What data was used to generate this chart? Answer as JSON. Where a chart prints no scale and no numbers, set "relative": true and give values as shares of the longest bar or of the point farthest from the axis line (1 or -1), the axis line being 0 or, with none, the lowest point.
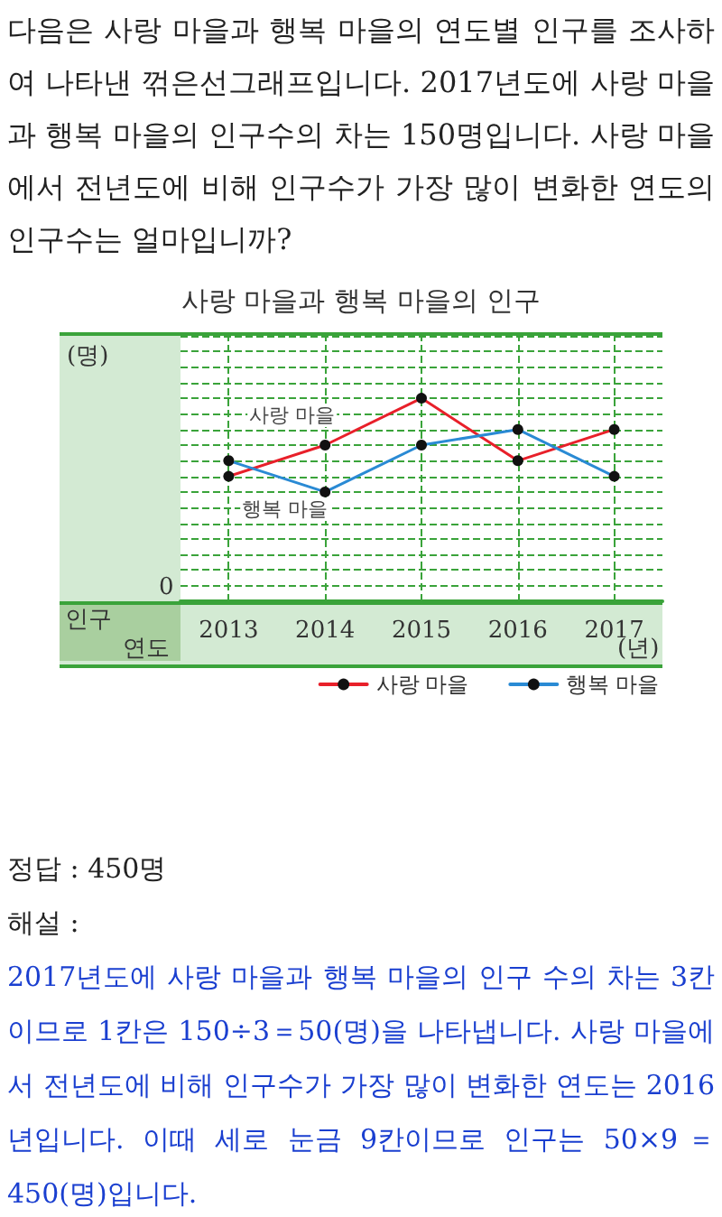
{
  "chart_data": {
    "type": "line",
    "title": "사랑 마을과 행복 마을의 인구",
    "xlabel": "(년)",
    "ylabel": "(명)",
    "categories": [
      "2013",
      "2014",
      "2015",
      "2016",
      "2017"
    ],
    "series": [
      {
        "name": "사랑 마을",
        "color": "#e8202a",
        "values": [
          0.6154,
          0.7692,
          1,
          0.6923,
          0.8462
        ]
      },
      {
        "name": "행복 마을",
        "color": "#2a8ad4",
        "values": [
          0.6923,
          0.5385,
          0.7692,
          0.8462,
          0.6154
        ]
      }
    ],
    "relative": true,
    "grid": true,
    "legend": "bottom right",
    "marker": "circle",
    "line_style": "solid",
    "annotations": [
      "다음은 사랑 마을과 행복 마을의 연도별 인구를 조사하여 나타낸 꺾은선그래프입니다. 2017년도에 사랑 마을과 행복 마을의 인구수의 차는 150명입니다. 사랑 마을에서 전년도에 비해 인구수가 가장 많이 변화한 연도의 인구수는 얼마입니까?",
      "인구",
      "연도",
      "0",
      "정답 : 450명",
      "해설 :",
      "2017년도에 사랑 마을과 행복 마을의 인구 수의 차는 3칸이므로 1칸은 150÷3＝50(명)을 나타냅니다. 사랑 마을에서 전년도에 비해 인구수가 가장 많이 변화한 연도는 2016년입니다. 이때 세로 눈금 9칸이므로 인구는 50×9＝450(명)입니다."
    ]
  }
}
